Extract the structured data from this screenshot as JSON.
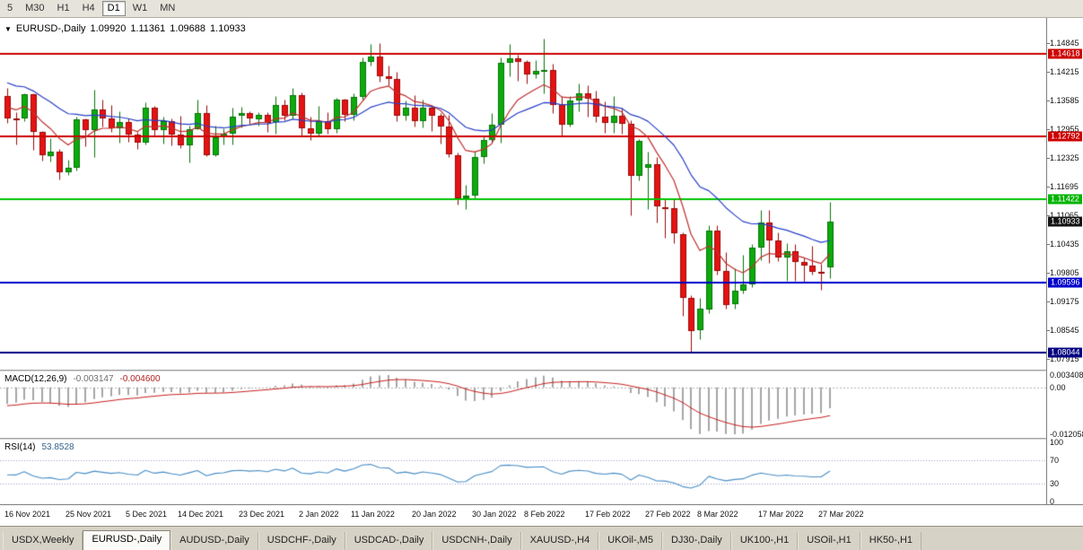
{
  "toolbar": {
    "timeframes": [
      {
        "label": "5",
        "active": false
      },
      {
        "label": "M30",
        "active": false
      },
      {
        "label": "H1",
        "active": false
      },
      {
        "label": "H4",
        "active": false
      },
      {
        "label": "D1",
        "active": true
      },
      {
        "label": "W1",
        "active": false
      },
      {
        "label": "MN",
        "active": false
      }
    ]
  },
  "chart_header": {
    "marker": "▼",
    "symbol": "EURUSD-,Daily",
    "open": "1.09920",
    "high": "1.11361",
    "low": "1.09688",
    "close": "1.10933"
  },
  "price_axis": {
    "tick_labels": [
      "1.14845",
      "1.14215",
      "1.13585",
      "1.12955",
      "1.12325",
      "1.11695",
      "1.11065",
      "1.10435",
      "1.09805",
      "1.09175",
      "1.08545",
      "1.07915"
    ],
    "badges": [
      {
        "label": "1.14618",
        "color": "#cc0000"
      },
      {
        "label": "1.12792",
        "color": "#cc0000"
      },
      {
        "label": "1.11422",
        "color": "#00b300"
      },
      {
        "label": "1.10933",
        "color": "#141414"
      },
      {
        "label": "1.09596",
        "color": "#0000cc"
      },
      {
        "label": "1.08044",
        "color": "#000080"
      }
    ]
  },
  "chart_data": {
    "type": "candlestick",
    "symbol": "EURUSD-",
    "timeframe": "Daily",
    "price_scale": {
      "top": 1.15396,
      "bottom": 1.07679
    },
    "up_color": "#0caa0c",
    "up_border": "#077407",
    "down_color": "#e51212",
    "down_border": "#9c0a0a",
    "horizontal_lines": [
      {
        "price": 1.14618,
        "color": "#cc0000"
      },
      {
        "price": 1.12792,
        "color": "#cc0000"
      },
      {
        "price": 1.11422,
        "color": "#00c300"
      },
      {
        "price": 1.09596,
        "color": "#0000cc"
      },
      {
        "price": 1.08044,
        "color": "#000080"
      }
    ],
    "overlays": [
      {
        "name": "ma-fast",
        "period": 8,
        "color": "#c03030",
        "seed": 1.135
      },
      {
        "name": "ma-slow",
        "period": 21,
        "color": "#2840c8",
        "seed": 1.1405
      }
    ],
    "candles": [
      [
        "2021-11-16",
        1.1369,
        1.1386,
        1.1309,
        1.132
      ],
      [
        "2021-11-17",
        1.132,
        1.1332,
        1.1263,
        1.1319
      ],
      [
        "2021-11-18",
        1.1319,
        1.1374,
        1.1313,
        1.1372
      ],
      [
        "2021-11-19",
        1.1372,
        1.1374,
        1.125,
        1.1289
      ],
      [
        "2021-11-22",
        1.1289,
        1.1291,
        1.1226,
        1.1237
      ],
      [
        "2021-11-23",
        1.1237,
        1.1275,
        1.1225,
        1.1246
      ],
      [
        "2021-11-24",
        1.1246,
        1.1253,
        1.1185,
        1.12
      ],
      [
        "2021-11-25",
        1.12,
        1.1229,
        1.1195,
        1.121
      ],
      [
        "2021-11-26",
        1.121,
        1.1323,
        1.1205,
        1.1317
      ],
      [
        "2021-11-29",
        1.1317,
        1.1319,
        1.1258,
        1.1293
      ],
      [
        "2021-11-30",
        1.1293,
        1.1383,
        1.1235,
        1.1339
      ],
      [
        "2021-12-01",
        1.1339,
        1.136,
        1.1302,
        1.1319
      ],
      [
        "2021-12-02",
        1.1319,
        1.1348,
        1.129,
        1.1298
      ],
      [
        "2021-12-03",
        1.1298,
        1.1334,
        1.1266,
        1.1311
      ],
      [
        "2021-12-06",
        1.1311,
        1.1319,
        1.1267,
        1.1284
      ],
      [
        "2021-12-07",
        1.1284,
        1.129,
        1.1253,
        1.1267
      ],
      [
        "2021-12-08",
        1.1267,
        1.1354,
        1.1262,
        1.1343
      ],
      [
        "2021-12-09",
        1.1343,
        1.1347,
        1.128,
        1.1294
      ],
      [
        "2021-12-10",
        1.1294,
        1.1324,
        1.1264,
        1.1313
      ],
      [
        "2021-12-13",
        1.1313,
        1.1319,
        1.126,
        1.1284
      ],
      [
        "2021-12-14",
        1.1284,
        1.1325,
        1.1255,
        1.126
      ],
      [
        "2021-12-15",
        1.126,
        1.1303,
        1.1222,
        1.1296
      ],
      [
        "2021-12-16",
        1.1296,
        1.136,
        1.1296,
        1.1331
      ],
      [
        "2021-12-17",
        1.1331,
        1.1349,
        1.1236,
        1.1239
      ],
      [
        "2021-12-20",
        1.1239,
        1.1304,
        1.1237,
        1.1278
      ],
      [
        "2021-12-21",
        1.1278,
        1.1298,
        1.1262,
        1.1286
      ],
      [
        "2021-12-22",
        1.1286,
        1.1342,
        1.1262,
        1.1324
      ],
      [
        "2021-12-23",
        1.1324,
        1.1344,
        1.13,
        1.133
      ],
      [
        "2021-12-24",
        1.133,
        1.1334,
        1.1308,
        1.1318
      ],
      [
        "2021-12-27",
        1.1318,
        1.1333,
        1.1304,
        1.1327
      ],
      [
        "2021-12-28",
        1.1327,
        1.1332,
        1.129,
        1.131
      ],
      [
        "2021-12-29",
        1.131,
        1.1369,
        1.1286,
        1.1348
      ],
      [
        "2021-12-30",
        1.1348,
        1.136,
        1.1316,
        1.1325
      ],
      [
        "2021-12-31",
        1.1325,
        1.1386,
        1.132,
        1.137
      ],
      [
        "2022-01-03",
        1.137,
        1.1376,
        1.1279,
        1.1297
      ],
      [
        "2022-01-04",
        1.1297,
        1.1323,
        1.1272,
        1.1285
      ],
      [
        "2022-01-05",
        1.1285,
        1.1347,
        1.128,
        1.1313
      ],
      [
        "2022-01-06",
        1.1313,
        1.1332,
        1.1285,
        1.1295
      ],
      [
        "2022-01-07",
        1.1295,
        1.1365,
        1.1288,
        1.136
      ],
      [
        "2022-01-10",
        1.136,
        1.1362,
        1.1314,
        1.1327
      ],
      [
        "2022-01-11",
        1.1327,
        1.1374,
        1.1315,
        1.1367
      ],
      [
        "2022-01-12",
        1.1367,
        1.1453,
        1.1361,
        1.1443
      ],
      [
        "2022-01-13",
        1.1443,
        1.1482,
        1.1435,
        1.1455
      ],
      [
        "2022-01-14",
        1.1455,
        1.14845,
        1.1399,
        1.1411
      ],
      [
        "2022-01-17",
        1.1411,
        1.1435,
        1.1392,
        1.1406
      ],
      [
        "2022-01-18",
        1.1406,
        1.1422,
        1.1314,
        1.1325
      ],
      [
        "2022-01-19",
        1.1325,
        1.1358,
        1.1316,
        1.1343
      ],
      [
        "2022-01-20",
        1.1343,
        1.137,
        1.1301,
        1.1313
      ],
      [
        "2022-01-21",
        1.1313,
        1.136,
        1.13,
        1.1343
      ],
      [
        "2022-01-24",
        1.1343,
        1.1349,
        1.1291,
        1.1325
      ],
      [
        "2022-01-25",
        1.1325,
        1.1331,
        1.1264,
        1.1301
      ],
      [
        "2022-01-26",
        1.1301,
        1.1327,
        1.1235,
        1.1239
      ],
      [
        "2022-01-27",
        1.1239,
        1.1244,
        1.1131,
        1.1144
      ],
      [
        "2022-01-28",
        1.1144,
        1.1174,
        1.1121,
        1.115
      ],
      [
        "2022-01-31",
        1.115,
        1.1248,
        1.1141,
        1.1234
      ],
      [
        "2022-02-01",
        1.1234,
        1.1279,
        1.1221,
        1.1272
      ],
      [
        "2022-02-02",
        1.1272,
        1.133,
        1.1266,
        1.1305
      ],
      [
        "2022-02-03",
        1.1305,
        1.1452,
        1.1266,
        1.1441
      ],
      [
        "2022-02-04",
        1.1441,
        1.1483,
        1.1411,
        1.1451
      ],
      [
        "2022-02-07",
        1.1451,
        1.1459,
        1.1402,
        1.1443
      ],
      [
        "2022-02-08",
        1.1443,
        1.1448,
        1.1396,
        1.1416
      ],
      [
        "2022-02-09",
        1.1416,
        1.1448,
        1.1408,
        1.1424
      ],
      [
        "2022-02-10",
        1.1424,
        1.1495,
        1.1375,
        1.1426
      ],
      [
        "2022-02-11",
        1.1426,
        1.1439,
        1.133,
        1.135
      ],
      [
        "2022-02-14",
        1.135,
        1.1369,
        1.128,
        1.1305
      ],
      [
        "2022-02-15",
        1.1305,
        1.1368,
        1.1301,
        1.1359
      ],
      [
        "2022-02-16",
        1.1359,
        1.1395,
        1.1334,
        1.1374
      ],
      [
        "2022-02-17",
        1.1374,
        1.1391,
        1.1324,
        1.1362
      ],
      [
        "2022-02-18",
        1.1362,
        1.138,
        1.1312,
        1.1323
      ],
      [
        "2022-02-21",
        1.1323,
        1.1357,
        1.1288,
        1.1309
      ],
      [
        "2022-02-22",
        1.1309,
        1.1368,
        1.1287,
        1.1325
      ],
      [
        "2022-02-23",
        1.1325,
        1.1342,
        1.1285,
        1.1307
      ],
      [
        "2022-02-24",
        1.1307,
        1.1316,
        1.1106,
        1.1193
      ],
      [
        "2022-02-25",
        1.1193,
        1.1274,
        1.1184,
        1.127
      ],
      [
        "2022-02-28",
        1.121,
        1.1247,
        1.1121,
        1.1218
      ],
      [
        "2022-03-01",
        1.1218,
        1.1234,
        1.109,
        1.1125
      ],
      [
        "2022-03-02",
        1.1125,
        1.1144,
        1.1058,
        1.1122
      ],
      [
        "2022-03-03",
        1.1122,
        1.1141,
        1.1045,
        1.1066
      ],
      [
        "2022-03-04",
        1.1066,
        1.1069,
        1.0886,
        1.0926
      ],
      [
        "2022-03-07",
        1.0926,
        1.0932,
        1.08044,
        1.0854
      ],
      [
        "2022-03-08",
        1.0854,
        1.0926,
        1.0834,
        1.0901
      ],
      [
        "2022-03-09",
        1.0901,
        1.1084,
        1.0891,
        1.1074
      ],
      [
        "2022-03-10",
        1.1074,
        1.1085,
        1.0976,
        1.0985
      ],
      [
        "2022-03-11",
        1.0985,
        1.1026,
        1.0901,
        1.0911
      ],
      [
        "2022-03-14",
        1.0911,
        1.0991,
        1.0902,
        1.0941
      ],
      [
        "2022-03-15",
        1.0941,
        1.1019,
        1.0936,
        1.0955
      ],
      [
        "2022-03-16",
        1.0955,
        1.1043,
        1.0949,
        1.1036
      ],
      [
        "2022-03-17",
        1.1036,
        1.1118,
        1.1009,
        1.1091
      ],
      [
        "2022-03-18",
        1.1091,
        1.1119,
        1.1003,
        1.1051
      ],
      [
        "2022-03-21",
        1.1051,
        1.107,
        1.1007,
        1.1014
      ],
      [
        "2022-03-22",
        1.1014,
        1.1046,
        1.0962,
        1.1028
      ],
      [
        "2022-03-23",
        1.1028,
        1.1044,
        1.0963,
        1.1004
      ],
      [
        "2022-03-24",
        1.1004,
        1.1014,
        1.0961,
        1.0997
      ],
      [
        "2022-03-25",
        1.0997,
        1.1039,
        1.0977,
        1.0983
      ],
      [
        "2022-03-28",
        1.0983,
        1.1,
        1.0944,
        1.098
      ],
      [
        "2022-03-29",
        1.0992,
        1.11361,
        1.09688,
        1.10933
      ]
    ],
    "x_labels": [
      {
        "text": "16 Nov 2021",
        "bar": 0
      },
      {
        "text": "25 Nov 2021",
        "bar": 7
      },
      {
        "text": "5 Dec 2021",
        "bar": 14
      },
      {
        "text": "14 Dec 2021",
        "bar": 20
      },
      {
        "text": "23 Dec 2021",
        "bar": 27
      },
      {
        "text": "2 Jan 2022",
        "bar": 34
      },
      {
        "text": "11 Jan 2022",
        "bar": 40
      },
      {
        "text": "20 Jan 2022",
        "bar": 47
      },
      {
        "text": "30 Jan 2022",
        "bar": 54
      },
      {
        "text": "8 Feb 2022",
        "bar": 60
      },
      {
        "text": "17 Feb 2022",
        "bar": 67
      },
      {
        "text": "27 Feb 2022",
        "bar": 74
      },
      {
        "text": "8 Mar 2022",
        "bar": 80
      },
      {
        "text": "17 Mar 2022",
        "bar": 87
      },
      {
        "text": "27 Mar 2022",
        "bar": 94
      }
    ]
  },
  "macd_panel": {
    "title": "MACD(12,26,9)",
    "value_main": "-0.003147",
    "value_signal": "-0.004600",
    "fast": 12,
    "slow": 26,
    "signal": 9,
    "seed_slow_offset": 0.004,
    "seed_signal": -0.0042,
    "histogram_color": "#a6a6a6",
    "signal_color": "#c82020",
    "axis_labels": [
      {
        "text": "0.003408",
        "anchor": "max"
      },
      {
        "text": "0.00",
        "anchor": "zero"
      },
      {
        "text": "-0.012058",
        "anchor": "min"
      }
    ]
  },
  "rsi_panel": {
    "title": "RSI(14)",
    "value": "53.8528",
    "period": 14,
    "seed_avg_gain": 0.0018,
    "seed_avg_loss": 0.0022,
    "line_color": "#4a8fc7",
    "level_color": "#9e9ec8",
    "levels": [
      70,
      30
    ],
    "axis_labels": [
      "100",
      "70",
      "30",
      "0"
    ]
  },
  "bottom_tabs": [
    {
      "label": "USDX,Weekly",
      "active": false
    },
    {
      "label": "EURUSD-,Daily",
      "active": true
    },
    {
      "label": "AUDUSD-,Daily",
      "active": false
    },
    {
      "label": "USDCHF-,Daily",
      "active": false
    },
    {
      "label": "USDCAD-,Daily",
      "active": false
    },
    {
      "label": "USDCNH-,Daily",
      "active": false
    },
    {
      "label": "XAUUSD-,H4",
      "active": false
    },
    {
      "label": "UKOil-,M5",
      "active": false
    },
    {
      "label": "DJ30-,Daily",
      "active": false
    },
    {
      "label": "UK100-,H1",
      "active": false
    },
    {
      "label": "USOil-,H1",
      "active": false
    },
    {
      "label": "HK50-,H1",
      "active": false
    }
  ]
}
